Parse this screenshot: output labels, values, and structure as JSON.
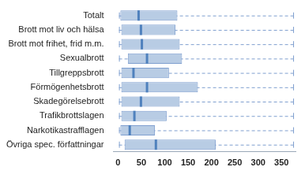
{
  "chart_data": {
    "type": "boxplot",
    "categories": [
      "Totalt",
      "Brott mot liv och hälsa",
      "Brott mot frihet, frid m.m.",
      "Sexualbrott",
      "Tillgreppsbrott",
      "Förmögenhetsbrott",
      "Skadegörelsebrott",
      "Trafikbrottslagen",
      "Narkotikastrafflagen",
      "Övriga spec. författningar"
    ],
    "min": [
      2,
      2,
      2,
      2,
      2,
      2,
      2,
      2,
      2,
      2
    ],
    "q1": [
      5,
      7,
      7,
      21,
      7,
      7,
      7,
      7,
      5,
      14
    ],
    "median": [
      44,
      49,
      51,
      62,
      33,
      62,
      49,
      35,
      25,
      81
    ],
    "q3": [
      127,
      123,
      132,
      137,
      109,
      171,
      132,
      104,
      79,
      209
    ],
    "max": [
      375,
      375,
      375,
      375,
      375,
      375,
      375,
      375,
      375,
      375
    ],
    "color": "#b8cce4",
    "orientation": "horizontal",
    "xlim": [
      -10,
      380
    ],
    "xticks": [
      0,
      50,
      100,
      150,
      200,
      250,
      300,
      350
    ],
    "grid": false
  }
}
